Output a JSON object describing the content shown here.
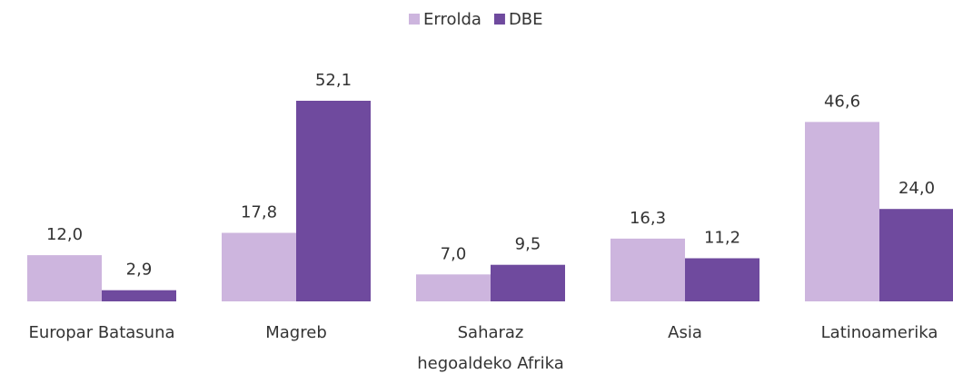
{
  "chart_data": {
    "type": "bar",
    "categories": [
      "Europar Batasuna",
      "Magreb",
      "Saharaz hegoaldeko Afrika",
      "Asia",
      "Latinoamerika"
    ],
    "series": [
      {
        "name": "Errolda",
        "color": "#cdb5de",
        "values": [
          12.0,
          17.8,
          7.0,
          16.3,
          46.6
        ],
        "value_labels": [
          "12,0",
          "17,8",
          "7,0",
          "16,3",
          "46,6"
        ]
      },
      {
        "name": "DBE",
        "color": "#6f4a9e",
        "values": [
          2.9,
          52.1,
          9.5,
          11.2,
          24.0
        ],
        "value_labels": [
          "2,9",
          "52,1",
          "9,5",
          "11,2",
          "24,0"
        ]
      }
    ],
    "legend": "top"
  }
}
